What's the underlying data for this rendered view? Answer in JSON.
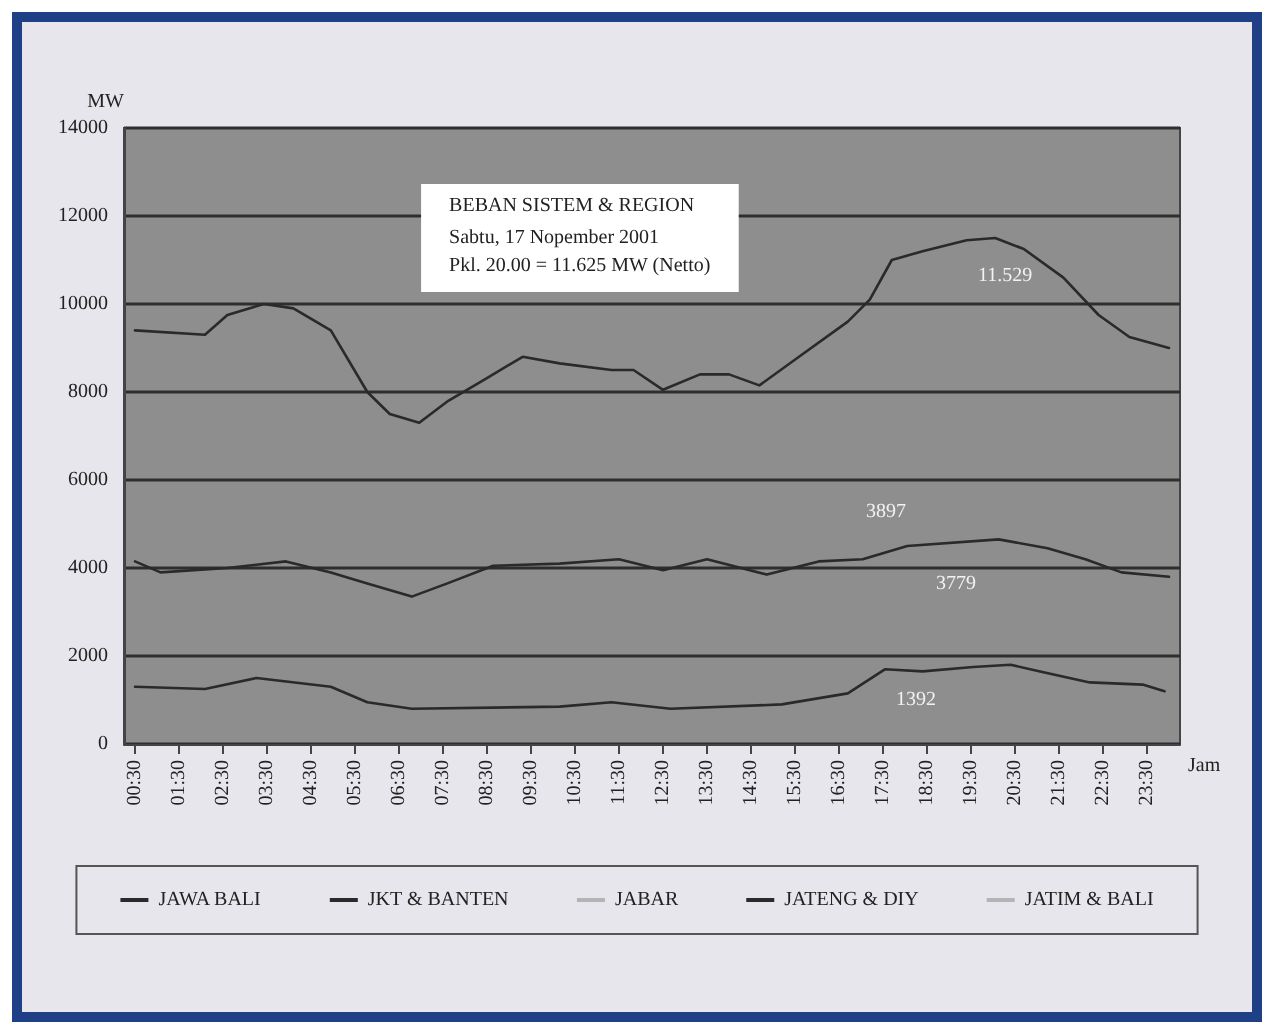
{
  "chart_data": {
    "type": "line",
    "title": "BEBAN SISTEM & REGION",
    "subtitle": "Sabtu, 17 Nopember 2001\nPkl. 20.00 = 11.625 MW (Netto)",
    "ylabel": "MW",
    "xlabel": "Jam",
    "xlim": [
      0.25,
      24.25
    ],
    "xticks": [
      {
        "value": 0.5,
        "label": "00:30"
      },
      {
        "value": 1.5,
        "label": "01:30"
      },
      {
        "value": 2.5,
        "label": "02:30"
      },
      {
        "value": 3.5,
        "label": "03:30"
      },
      {
        "value": 4.5,
        "label": "04:30"
      },
      {
        "value": 5.5,
        "label": "05:30"
      },
      {
        "value": 6.5,
        "label": "06:30"
      },
      {
        "value": 7.5,
        "label": "07:30"
      },
      {
        "value": 8.5,
        "label": "08:30"
      },
      {
        "value": 9.5,
        "label": "09:30"
      },
      {
        "value": 10.5,
        "label": "10:30"
      },
      {
        "value": 11.5,
        "label": "11:30"
      },
      {
        "value": 12.5,
        "label": "12:30"
      },
      {
        "value": 13.5,
        "label": "13:30"
      },
      {
        "value": 14.5,
        "label": "14:30"
      },
      {
        "value": 15.5,
        "label": "15:30"
      },
      {
        "value": 16.5,
        "label": "16:30"
      },
      {
        "value": 17.5,
        "label": "17:30"
      },
      {
        "value": 18.5,
        "label": "18:30"
      },
      {
        "value": 19.5,
        "label": "19:30"
      },
      {
        "value": 20.5,
        "label": "20:30"
      },
      {
        "value": 21.5,
        "label": "21:30"
      },
      {
        "value": 22.5,
        "label": "22:30"
      },
      {
        "value": 23.5,
        "label": "23:30"
      }
    ],
    "ylim": [
      0,
      14000
    ],
    "yticks": [
      0,
      2000,
      4000,
      6000,
      8000,
      10000,
      12000,
      14000
    ],
    "grid": "y",
    "legend": "bottom",
    "marker": "none",
    "line_style": "solid",
    "series": [
      {
        "name": "JAWA BALI",
        "color": "#2a2a2a",
        "x": [
          0.5,
          2.09,
          2.6,
          3.43,
          4.1,
          4.95,
          5.78,
          6.29,
          6.96,
          7.62,
          8.47,
          9.31,
          10.15,
          11.33,
          11.83,
          12.5,
          13.34,
          14.0,
          14.69,
          15.52,
          16.7,
          17.2,
          17.7,
          18.4,
          19.4,
          20.05,
          20.7,
          21.6,
          22.4,
          23.1,
          24.0
        ],
        "values": [
          9400,
          9300,
          9750,
          10000,
          9900,
          9400,
          8000,
          7500,
          7300,
          7800,
          8300,
          8800,
          8650,
          8500,
          8500,
          8050,
          8400,
          8400,
          8150,
          8750,
          9600,
          10100,
          11000,
          11200,
          11450,
          11500,
          11250,
          10600,
          9750,
          9250,
          9000
        ]
      },
      {
        "name": "JKT & BANTEN",
        "color": "#2a2a2a",
        "x": [
          0.5,
          1.08,
          2.6,
          3.93,
          4.95,
          5.78,
          6.79,
          7.6,
          8.64,
          10.15,
          11.5,
          12.5,
          13.5,
          14.86,
          16.04,
          17.04,
          18.05,
          20.13,
          21.24,
          22.1,
          22.92,
          24.0
        ],
        "values": [
          4150,
          3900,
          4000,
          4150,
          3900,
          3650,
          3350,
          3650,
          4050,
          4100,
          4200,
          3950,
          4200,
          3850,
          4150,
          4200,
          4500,
          4650,
          4450,
          4200,
          3900,
          3800
        ]
      },
      {
        "name": "JABAR",
        "color": "#b4b4b4"
      },
      {
        "name": "JATENG & DIY",
        "color": "#2a2a2a",
        "x": [
          0.5,
          2.09,
          3.26,
          4.95,
          5.78,
          6.79,
          10.15,
          11.33,
          12.67,
          15.2,
          16.7,
          17.55,
          18.4,
          19.55,
          20.4,
          21.07,
          22.2,
          23.4,
          23.9
        ],
        "values": [
          1300,
          1250,
          1500,
          1300,
          950,
          800,
          850,
          950,
          800,
          900,
          1150,
          1700,
          1650,
          1750,
          1800,
          1650,
          1400,
          1350,
          1200
        ]
      },
      {
        "name": "JATIM & BALI",
        "color": "#b4b4b4"
      }
    ],
    "annotations": [
      "11.529",
      "3897",
      "3779",
      "1392"
    ]
  }
}
